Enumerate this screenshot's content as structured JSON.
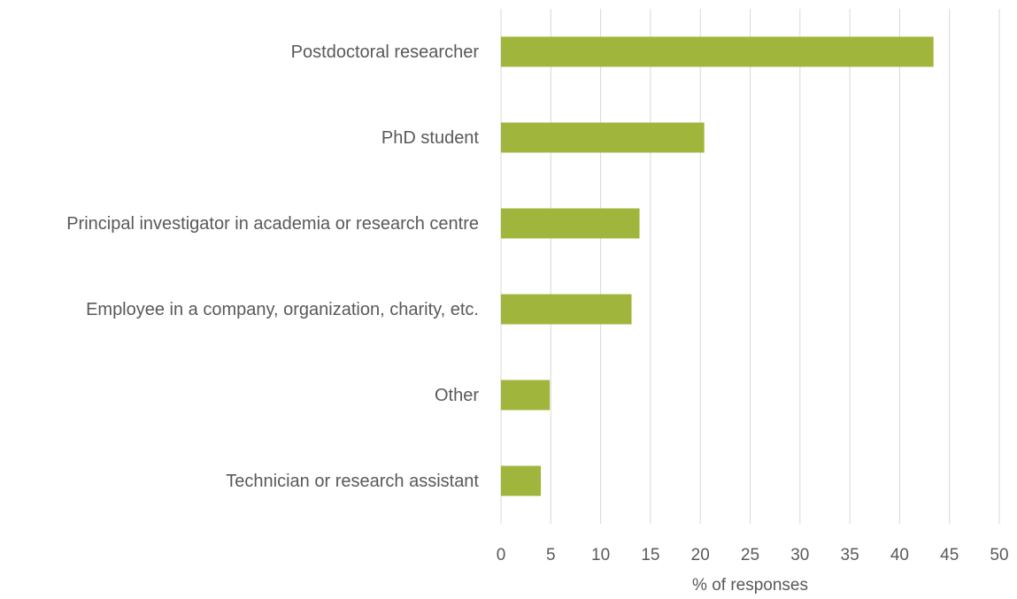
{
  "chart_data": {
    "type": "barh",
    "categories": [
      "Postdoctoral researcher",
      "PhD student",
      "Principal investigator in academia or research centre",
      "Employee in a company, organization, charity, etc.",
      "Other",
      "Technician or research assistant"
    ],
    "values": [
      43.4,
      20.4,
      13.9,
      13.1,
      4.9,
      4.0
    ],
    "color": "#a0b53c",
    "xlabel": "% of responses",
    "xlim": [
      0,
      50
    ],
    "xticks": [
      0,
      5,
      10,
      15,
      20,
      25,
      30,
      35,
      40,
      45,
      50
    ],
    "grid": true
  }
}
